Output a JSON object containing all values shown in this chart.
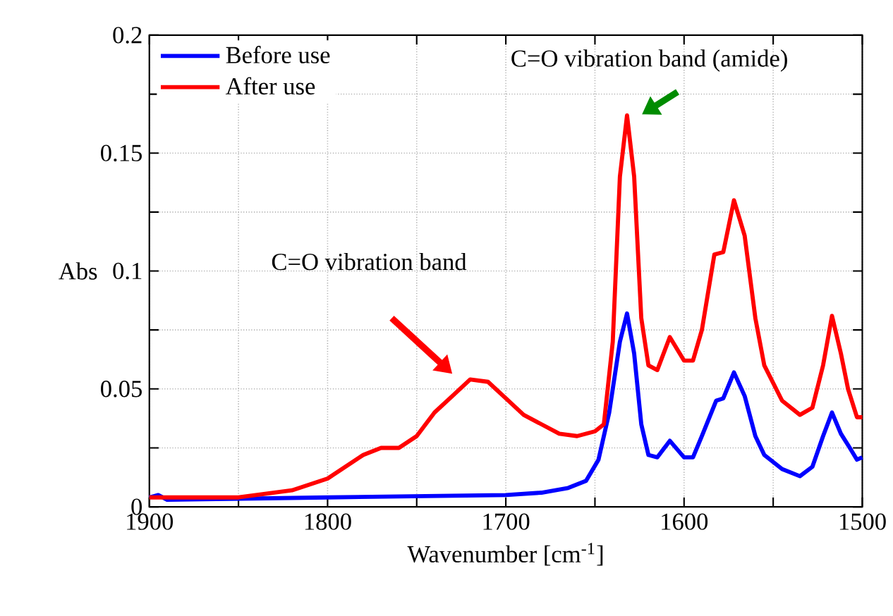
{
  "chart_data": {
    "type": "line",
    "xlabel": "Wavenumber [cm$^{-1}$]",
    "ylabel": "Abs",
    "xlim": [
      1900,
      1500
    ],
    "ylim": [
      0,
      0.2
    ],
    "xticks": [
      1900,
      {
        "value": 1850,
        "label": null
      },
      1800,
      {
        "value": 1750,
        "label": null
      },
      1700,
      {
        "value": 1650,
        "label": null
      },
      1600,
      {
        "value": 1550,
        "label": null
      },
      1500
    ],
    "yticks": [
      0,
      {
        "value": 0.025,
        "label": null
      },
      0.05,
      {
        "value": 0.075,
        "label": null
      },
      0.1,
      {
        "value": 0.125,
        "label": null
      },
      0.15,
      {
        "value": 0.175,
        "label": null
      },
      0.2
    ],
    "grid": true,
    "legend": "top left",
    "marker": "none",
    "line_style": "solid",
    "series": [
      {
        "name": "Before use",
        "color": "#0000ff",
        "x": [
          1900,
          1895,
          1890,
          1800,
          1700,
          1680,
          1665,
          1655,
          1648,
          1642,
          1636,
          1632,
          1628,
          1624,
          1620,
          1615,
          1608,
          1600,
          1595,
          1590,
          1582,
          1578,
          1572,
          1566,
          1560,
          1555,
          1545,
          1535,
          1528,
          1522,
          1517,
          1512,
          1507,
          1503,
          1500
        ],
        "values": [
          0.004,
          0.005,
          0.003,
          0.004,
          0.005,
          0.006,
          0.008,
          0.011,
          0.02,
          0.04,
          0.07,
          0.082,
          0.065,
          0.035,
          0.022,
          0.021,
          0.028,
          0.021,
          0.021,
          0.03,
          0.045,
          0.046,
          0.057,
          0.047,
          0.03,
          0.022,
          0.016,
          0.013,
          0.017,
          0.03,
          0.04,
          0.031,
          0.025,
          0.02,
          0.021
        ]
      },
      {
        "name": "After use",
        "color": "#ff0000",
        "x": [
          1900,
          1850,
          1820,
          1800,
          1780,
          1770,
          1760,
          1750,
          1740,
          1730,
          1720,
          1710,
          1700,
          1690,
          1680,
          1670,
          1660,
          1650,
          1645,
          1640,
          1636,
          1632,
          1628,
          1624,
          1620,
          1615,
          1608,
          1600,
          1595,
          1590,
          1583,
          1578,
          1572,
          1566,
          1560,
          1555,
          1545,
          1535,
          1528,
          1522,
          1517,
          1512,
          1508,
          1503,
          1500
        ],
        "values": [
          0.004,
          0.004,
          0.007,
          0.012,
          0.022,
          0.025,
          0.025,
          0.03,
          0.04,
          0.047,
          0.054,
          0.053,
          0.046,
          0.039,
          0.035,
          0.031,
          0.03,
          0.032,
          0.035,
          0.07,
          0.14,
          0.166,
          0.14,
          0.08,
          0.06,
          0.058,
          0.072,
          0.062,
          0.062,
          0.075,
          0.107,
          0.108,
          0.13,
          0.115,
          0.08,
          0.06,
          0.045,
          0.039,
          0.042,
          0.06,
          0.081,
          0.065,
          0.05,
          0.038,
          0.038
        ]
      }
    ],
    "annotations": [
      "C=O vibration band",
      {
        "text": "C=O vibration band (amide)",
        "x": 1630,
        "y": 0.168
      }
    ]
  }
}
